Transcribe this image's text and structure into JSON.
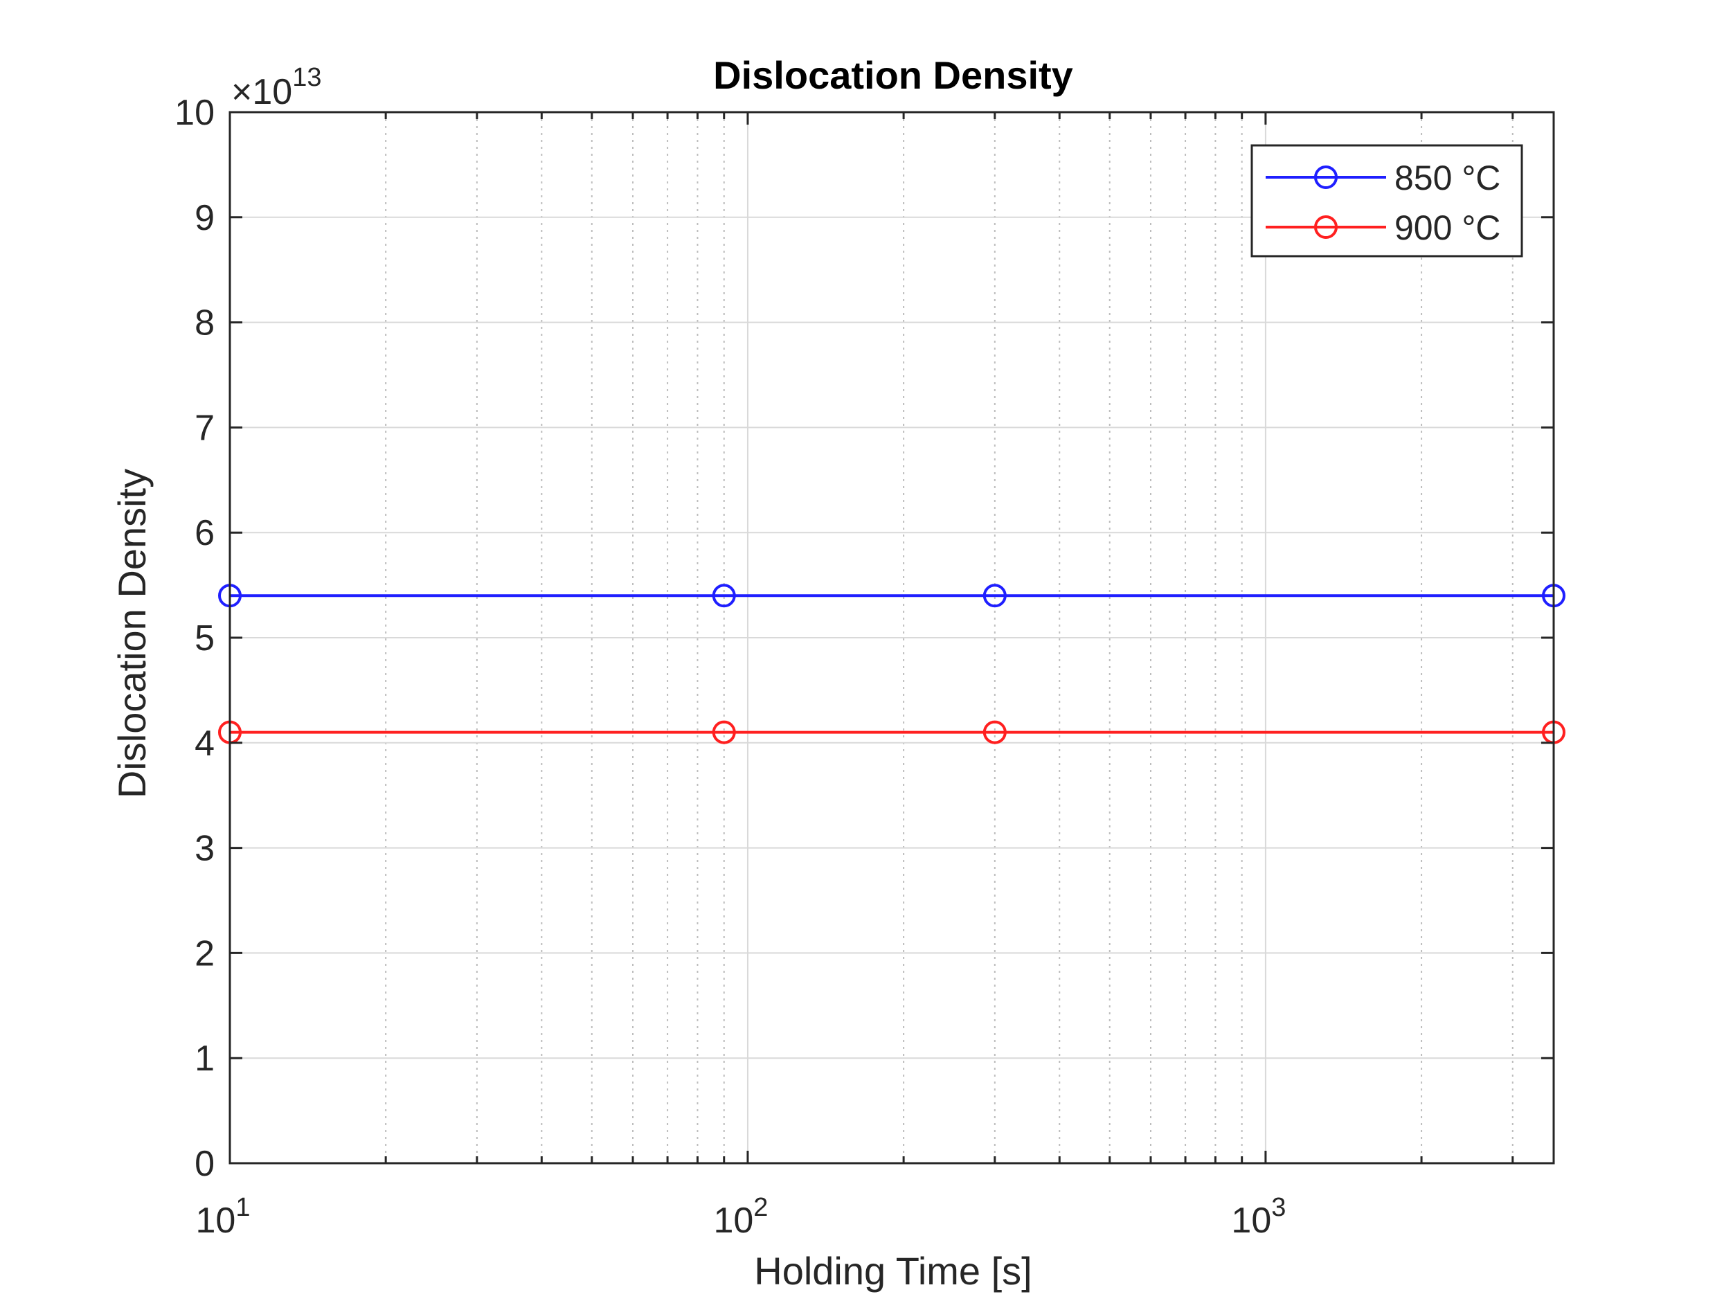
{
  "chart_data": {
    "type": "line",
    "title": "Dislocation Density",
    "xlabel": "Holding Time [s]",
    "ylabel": "Dislocation Density",
    "x_scale": "log",
    "xlim": [
      10,
      3600
    ],
    "ylim": [
      0,
      10
    ],
    "y_multiplier_label": "×10",
    "y_multiplier_exponent": "13",
    "x_ticks": [
      {
        "value": 10,
        "base": "10",
        "exp": "1"
      },
      {
        "value": 100,
        "base": "10",
        "exp": "2"
      },
      {
        "value": 1000,
        "base": "10",
        "exp": "3"
      }
    ],
    "y_ticks": [
      "0",
      "1",
      "2",
      "3",
      "4",
      "5",
      "6",
      "7",
      "8",
      "9",
      "10"
    ],
    "grid": true,
    "legend_position": "top-right",
    "x": [
      10,
      90,
      300,
      3600
    ],
    "series": [
      {
        "name": "850 °C",
        "color": "#1f1fff",
        "values": [
          5.4,
          5.4,
          5.4,
          5.4
        ]
      },
      {
        "name": "900 °C",
        "color": "#ff2020",
        "values": [
          4.1,
          4.1,
          4.1,
          4.1
        ]
      }
    ]
  }
}
